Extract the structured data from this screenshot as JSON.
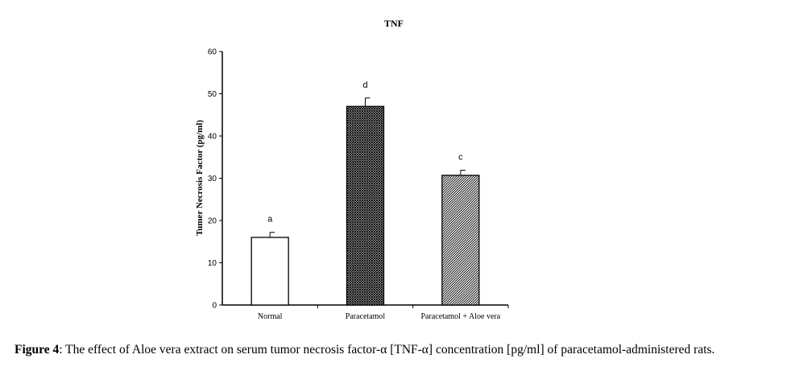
{
  "chart_data": {
    "type": "bar",
    "title": "TNF",
    "ylabel": "Tumer Necrosis Factor (pg/ml)",
    "xlabel": "",
    "ylim": [
      0,
      60
    ],
    "yticks": [
      "0",
      "10",
      "20",
      "30",
      "40",
      "50",
      "60"
    ],
    "categories": [
      "Normal",
      "Paracetamol",
      "Paracetamol + Aloe vera"
    ],
    "values": [
      16,
      47,
      30.7
    ],
    "errors": [
      1.2,
      2.0,
      1.2
    ],
    "significance": [
      "a",
      "d",
      "c"
    ],
    "fills": [
      "white",
      "dense-crosshatch",
      "diagonal-hatch"
    ],
    "colors": {
      "bar_outline": "#000000",
      "hatch": "#000000"
    }
  },
  "caption": {
    "label": "Figure 4",
    "text": ": The effect of Aloe vera extract on serum tumor necrosis factor-α [TNF-α] concentration [pg/ml] of paracetamol-administered rats."
  }
}
